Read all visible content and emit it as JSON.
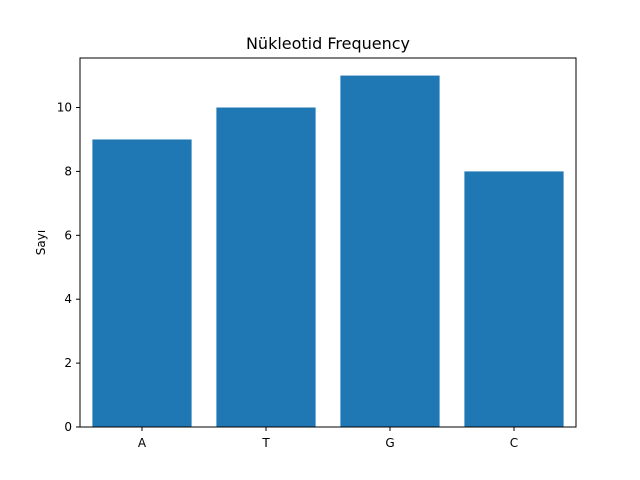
{
  "chart_data": {
    "type": "bar",
    "title": "Nükleotid Frequency",
    "xlabel": "",
    "ylabel": "Sayı",
    "categories": [
      "A",
      "T",
      "G",
      "C"
    ],
    "values": [
      9,
      10,
      11,
      8
    ],
    "ylim": [
      0,
      11.55
    ],
    "yticks": [
      0,
      2,
      4,
      6,
      8,
      10
    ],
    "bar_color": "#1f77b4",
    "grid": false,
    "legend": "none"
  }
}
